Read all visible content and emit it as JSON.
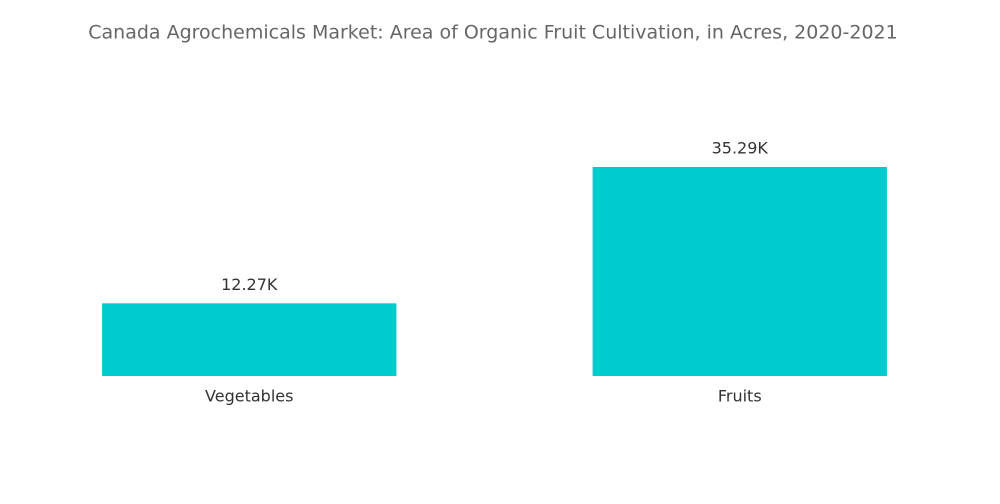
{
  "chart_data": {
    "type": "bar",
    "title": "Canada Agrochemicals Market: Area of Organic Fruit Cultivation, in Acres, 2020-2021",
    "categories": [
      "Vegetables",
      "Fruits"
    ],
    "values": [
      12.27,
      35.29
    ],
    "value_labels": [
      "12.27K",
      "35.29K"
    ],
    "color": "#00ccd0"
  }
}
